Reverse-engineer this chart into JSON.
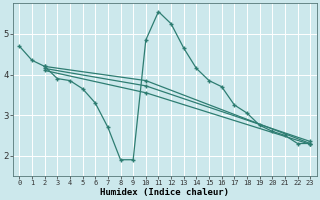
{
  "bg_color": "#cce8ec",
  "grid_color": "#ffffff",
  "line_color": "#2e7d72",
  "xlabel": "Humidex (Indice chaleur)",
  "xlim": [
    -0.5,
    23.5
  ],
  "ylim": [
    1.5,
    5.75
  ],
  "yticks": [
    2,
    3,
    4,
    5
  ],
  "xticks": [
    0,
    1,
    2,
    3,
    4,
    5,
    6,
    7,
    8,
    9,
    10,
    11,
    12,
    13,
    14,
    15,
    16,
    17,
    18,
    19,
    20,
    21,
    22,
    23
  ],
  "lines": [
    {
      "x": [
        0,
        1,
        2,
        3,
        4,
        5,
        6,
        7,
        8,
        9,
        10,
        11,
        12,
        13,
        14,
        15,
        16,
        17,
        18,
        19,
        20,
        21,
        22,
        23
      ],
      "y": [
        4.7,
        4.35,
        4.2,
        3.9,
        3.85,
        3.65,
        3.3,
        2.7,
        1.9,
        1.9,
        4.85,
        5.55,
        5.25,
        4.65,
        4.15,
        3.85,
        3.7,
        3.25,
        3.05,
        2.75,
        2.6,
        2.5,
        2.3,
        2.3
      ]
    },
    {
      "x": [
        2,
        10,
        23
      ],
      "y": [
        4.2,
        3.85,
        2.3
      ]
    },
    {
      "x": [
        2,
        10,
        23
      ],
      "y": [
        4.15,
        3.72,
        2.35
      ]
    },
    {
      "x": [
        2,
        10,
        23
      ],
      "y": [
        4.1,
        3.55,
        2.28
      ]
    }
  ]
}
